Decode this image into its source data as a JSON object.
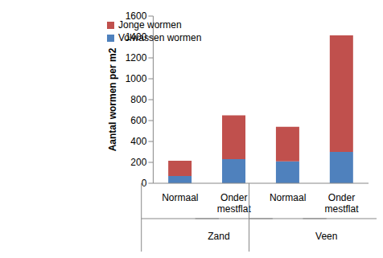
{
  "chart_data": {
    "type": "bar",
    "stacked": true,
    "y_label": "Aantal wormen per m2",
    "categories": [
      "Normaal",
      "Onder mestflat",
      "Normaal",
      "Onder mestflat"
    ],
    "groups": [
      {
        "label": "Zand",
        "count": 2
      },
      {
        "label": "Veen",
        "count": 2
      }
    ],
    "series": [
      {
        "name": "Volwassen wormen",
        "color": "#4f81bd",
        "values": [
          70,
          230,
          210,
          300
        ]
      },
      {
        "name": "Jonge wormen",
        "color": "#c0504d",
        "values": [
          145,
          420,
          330,
          1115
        ]
      }
    ],
    "ylim": [
      0,
      1600
    ],
    "yticks": [
      0,
      200,
      400,
      600,
      800,
      1000,
      1200,
      1400,
      1600
    ],
    "grid": false,
    "legend": "upper left"
  }
}
